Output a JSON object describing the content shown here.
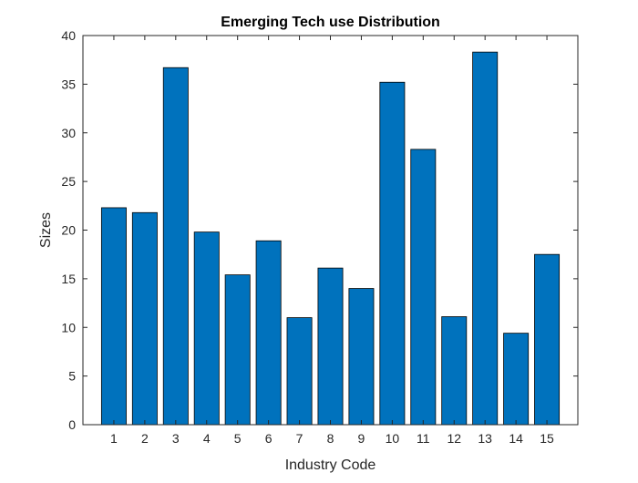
{
  "chart_data": {
    "type": "bar",
    "title": "Emerging Tech use Distribution",
    "xlabel": "Industry Code",
    "ylabel": "Sizes",
    "categories": [
      "1",
      "2",
      "3",
      "4",
      "5",
      "6",
      "7",
      "8",
      "9",
      "10",
      "11",
      "12",
      "13",
      "14",
      "15"
    ],
    "values": [
      22.3,
      21.8,
      36.7,
      19.8,
      15.4,
      18.9,
      11.0,
      16.1,
      14.0,
      35.2,
      28.3,
      11.1,
      38.3,
      9.4,
      17.5
    ],
    "ylim": [
      0,
      40
    ],
    "xlim": [
      0,
      16
    ],
    "yticks": [
      0,
      5,
      10,
      15,
      20,
      25,
      30,
      35,
      40
    ],
    "grid": false,
    "legend": "none",
    "bar_color": "#0072BD",
    "edge_color": "#000000"
  }
}
